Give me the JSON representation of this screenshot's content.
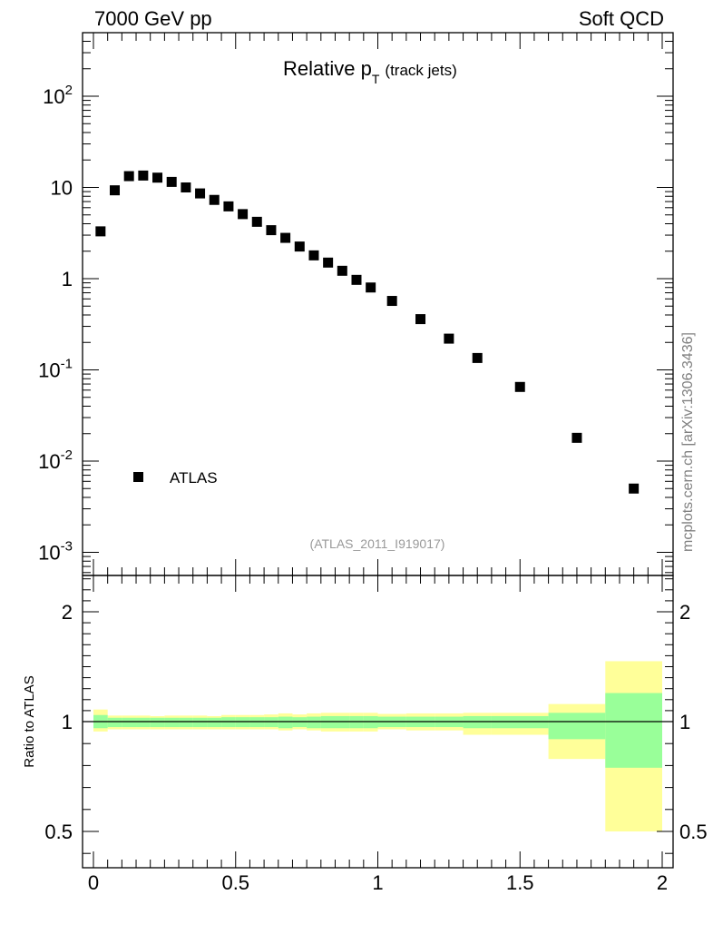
{
  "header": {
    "left": "7000 GeV pp",
    "right": "Soft QCD"
  },
  "plot": {
    "title_main": "Relative p",
    "title_sub": "T",
    "title_suffix": "(track jets)",
    "analysis_tag": "(ATLAS_2011_I919017)",
    "side_label": "mcplots.cern.ch [arXiv:1306.3436]",
    "legend_label": "ATLAS",
    "ratio_ylabel": "Ratio to ATLAS"
  },
  "colors": {
    "data_marker": "#000000",
    "band_inner": "#99ff99",
    "band_outer": "#ffff99",
    "ratio_line": "#000000"
  },
  "chart_data": [
    {
      "type": "scatter",
      "yscale": "log",
      "ylim": [
        0.0007,
        500
      ],
      "xlim": [
        -0.05,
        2.05
      ],
      "ytick_labels": [
        "10^-3",
        "10^-2",
        "10^-1",
        "1",
        "10",
        "10^2"
      ],
      "legend": "lower-left",
      "series": [
        {
          "name": "ATLAS",
          "x": [
            0.025,
            0.075,
            0.125,
            0.175,
            0.225,
            0.275,
            0.325,
            0.375,
            0.425,
            0.475,
            0.525,
            0.575,
            0.625,
            0.675,
            0.725,
            0.775,
            0.825,
            0.875,
            0.925,
            0.975,
            1.05,
            1.15,
            1.25,
            1.35,
            1.5,
            1.7,
            1.9
          ],
          "y": [
            3.3,
            9.3,
            13.3,
            13.5,
            12.8,
            11.5,
            10.0,
            8.6,
            7.3,
            6.2,
            5.1,
            4.2,
            3.4,
            2.8,
            2.25,
            1.8,
            1.5,
            1.22,
            0.97,
            0.8,
            0.57,
            0.36,
            0.22,
            0.135,
            0.065,
            0.018,
            0.005
          ]
        }
      ]
    },
    {
      "type": "area",
      "ylim": [
        0.38,
        2.3
      ],
      "xlim": [
        -0.05,
        2.05
      ],
      "xtick_labels": [
        "0",
        "0.5",
        "1",
        "1.5",
        "2"
      ],
      "ytick_labels": [
        "0.5",
        "1",
        "2"
      ],
      "xlabel": "",
      "ylabel": "Ratio to ATLAS",
      "bins": [
        [
          0.0,
          0.05
        ],
        [
          0.05,
          0.1
        ],
        [
          0.1,
          0.15
        ],
        [
          0.15,
          0.2
        ],
        [
          0.2,
          0.25
        ],
        [
          0.25,
          0.3
        ],
        [
          0.3,
          0.35
        ],
        [
          0.35,
          0.4
        ],
        [
          0.4,
          0.45
        ],
        [
          0.45,
          0.5
        ],
        [
          0.5,
          0.55
        ],
        [
          0.55,
          0.6
        ],
        [
          0.6,
          0.65
        ],
        [
          0.65,
          0.7
        ],
        [
          0.7,
          0.75
        ],
        [
          0.75,
          0.8
        ],
        [
          0.8,
          0.85
        ],
        [
          0.85,
          0.9
        ],
        [
          0.9,
          0.95
        ],
        [
          0.95,
          1.0
        ],
        [
          1.0,
          1.1
        ],
        [
          1.1,
          1.2
        ],
        [
          1.2,
          1.3
        ],
        [
          1.3,
          1.4
        ],
        [
          1.4,
          1.6
        ],
        [
          1.6,
          1.8
        ],
        [
          1.8,
          2.0
        ]
      ],
      "inner_band": [
        [
          0.97,
          1.06
        ],
        [
          0.975,
          1.035
        ],
        [
          0.975,
          1.035
        ],
        [
          0.975,
          1.035
        ],
        [
          0.975,
          1.035
        ],
        [
          0.975,
          1.035
        ],
        [
          0.975,
          1.035
        ],
        [
          0.975,
          1.035
        ],
        [
          0.975,
          1.035
        ],
        [
          0.975,
          1.04
        ],
        [
          0.975,
          1.04
        ],
        [
          0.975,
          1.04
        ],
        [
          0.975,
          1.04
        ],
        [
          0.97,
          1.045
        ],
        [
          0.975,
          1.04
        ],
        [
          0.97,
          1.045
        ],
        [
          0.97,
          1.05
        ],
        [
          0.97,
          1.05
        ],
        [
          0.97,
          1.05
        ],
        [
          0.97,
          1.05
        ],
        [
          0.975,
          1.045
        ],
        [
          0.975,
          1.045
        ],
        [
          0.975,
          1.045
        ],
        [
          0.97,
          1.05
        ],
        [
          0.97,
          1.05
        ],
        [
          0.92,
          1.08
        ],
        [
          0.79,
          1.26
        ]
      ],
      "outer_band": [
        [
          0.955,
          1.11
        ],
        [
          0.965,
          1.055
        ],
        [
          0.965,
          1.055
        ],
        [
          0.965,
          1.055
        ],
        [
          0.965,
          1.05
        ],
        [
          0.965,
          1.055
        ],
        [
          0.965,
          1.055
        ],
        [
          0.965,
          1.055
        ],
        [
          0.965,
          1.05
        ],
        [
          0.965,
          1.06
        ],
        [
          0.965,
          1.06
        ],
        [
          0.965,
          1.06
        ],
        [
          0.965,
          1.065
        ],
        [
          0.96,
          1.075
        ],
        [
          0.965,
          1.065
        ],
        [
          0.96,
          1.075
        ],
        [
          0.955,
          1.08
        ],
        [
          0.955,
          1.08
        ],
        [
          0.955,
          1.08
        ],
        [
          0.955,
          1.08
        ],
        [
          0.965,
          1.07
        ],
        [
          0.96,
          1.075
        ],
        [
          0.96,
          1.075
        ],
        [
          0.94,
          1.08
        ],
        [
          0.94,
          1.08
        ],
        [
          0.83,
          1.16
        ],
        [
          0.5,
          1.55
        ]
      ]
    }
  ]
}
